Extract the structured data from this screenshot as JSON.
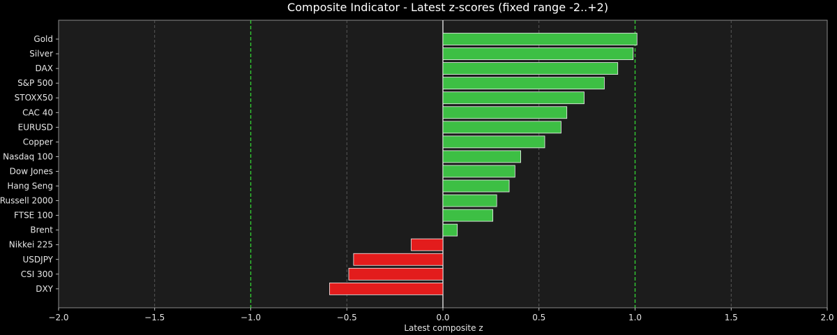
{
  "chart_data": {
    "type": "bar",
    "orientation": "horizontal",
    "title": "Composite Indicator - Latest z-scores (fixed range -2..+2)",
    "xlabel": "Latest composite z",
    "ylabel": "",
    "xlim": [
      -2.0,
      2.0
    ],
    "xticks": [
      "−2.0",
      "−1.5",
      "−1.0",
      "−0.5",
      "0.0",
      "0.5",
      "1.0",
      "1.5",
      "2.0"
    ],
    "xtick_values": [
      -2.0,
      -1.5,
      -1.0,
      -0.5,
      0.0,
      0.5,
      1.0,
      1.5,
      2.0
    ],
    "threshold_lines": [
      -1.0,
      1.0
    ],
    "grid": "vertical dashed",
    "categories": [
      "Gold",
      "Silver",
      "DAX",
      "S&P 500",
      "STOXX50",
      "CAC 40",
      "EURUSD",
      "Copper",
      "Nasdaq 100",
      "Dow Jones",
      "Hang Seng",
      "Russell 2000",
      "FTSE 100",
      "Brent",
      "Nikkei 225",
      "USDJPY",
      "CSI 300",
      "DXY"
    ],
    "values": [
      1.01,
      0.99,
      0.91,
      0.84,
      0.735,
      0.645,
      0.615,
      0.53,
      0.405,
      0.375,
      0.345,
      0.28,
      0.26,
      0.075,
      -0.165,
      -0.465,
      -0.49,
      -0.59
    ]
  },
  "colors": {
    "background": "#000000",
    "plot_background": "#1c1c1c",
    "positive_bar": "#3dbf44",
    "negative_bar": "#e31c1c",
    "bar_edge": "#f2f2f2",
    "threshold": "#33cc33",
    "grid": "#666666",
    "zero_line": "#ffffff",
    "text": "#e6e6e6"
  }
}
